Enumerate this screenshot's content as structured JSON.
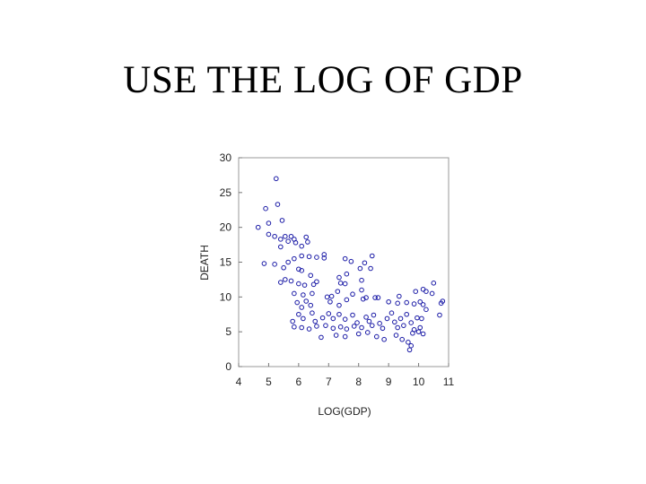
{
  "slide": {
    "title": "USE THE LOG OF GDP"
  },
  "chart_data": {
    "type": "scatter",
    "title": "",
    "xlabel": "LOG(GDP)",
    "ylabel": "DEATH",
    "xlim": [
      4,
      11
    ],
    "ylim": [
      0,
      30
    ],
    "xticks": [
      4,
      5,
      6,
      7,
      8,
      9,
      10,
      11
    ],
    "yticks": [
      0,
      5,
      10,
      15,
      20,
      25,
      30
    ],
    "grid": false,
    "marker": "open-circle",
    "color": "#1a1aa6",
    "points": [
      [
        4.65,
        20.0
      ],
      [
        4.9,
        22.7
      ],
      [
        5.25,
        27.0
      ],
      [
        5.3,
        23.3
      ],
      [
        5.45,
        21.0
      ],
      [
        5.0,
        20.6
      ],
      [
        5.55,
        18.7
      ],
      [
        5.0,
        19.0
      ],
      [
        5.2,
        18.7
      ],
      [
        5.4,
        18.3
      ],
      [
        5.75,
        18.7
      ],
      [
        5.85,
        18.3
      ],
      [
        5.65,
        18.0
      ],
      [
        5.9,
        17.8
      ],
      [
        6.1,
        17.3
      ],
      [
        6.25,
        18.6
      ],
      [
        6.3,
        17.9
      ],
      [
        5.4,
        17.2
      ],
      [
        5.85,
        15.5
      ],
      [
        6.1,
        15.9
      ],
      [
        6.35,
        15.8
      ],
      [
        6.6,
        15.7
      ],
      [
        6.85,
        15.6
      ],
      [
        6.85,
        16.1
      ],
      [
        7.55,
        15.5
      ],
      [
        7.75,
        15.1
      ],
      [
        8.2,
        14.9
      ],
      [
        8.45,
        15.9
      ],
      [
        4.85,
        14.8
      ],
      [
        5.2,
        14.7
      ],
      [
        5.5,
        14.2
      ],
      [
        5.65,
        15.0
      ],
      [
        6.0,
        14.0
      ],
      [
        6.1,
        13.8
      ],
      [
        6.4,
        13.1
      ],
      [
        6.6,
        12.2
      ],
      [
        7.35,
        12.8
      ],
      [
        7.6,
        13.3
      ],
      [
        8.05,
        14.1
      ],
      [
        8.4,
        14.1
      ],
      [
        5.4,
        12.1
      ],
      [
        5.55,
        12.5
      ],
      [
        5.75,
        12.3
      ],
      [
        6.0,
        11.9
      ],
      [
        6.2,
        11.7
      ],
      [
        6.5,
        11.8
      ],
      [
        7.4,
        12.0
      ],
      [
        7.55,
        11.9
      ],
      [
        8.1,
        12.4
      ],
      [
        8.1,
        11.0
      ],
      [
        5.85,
        10.5
      ],
      [
        6.15,
        10.3
      ],
      [
        6.45,
        10.5
      ],
      [
        6.95,
        10.0
      ],
      [
        7.1,
        10.1
      ],
      [
        7.3,
        10.8
      ],
      [
        7.8,
        10.4
      ],
      [
        8.25,
        9.9
      ],
      [
        8.65,
        9.9
      ],
      [
        9.35,
        10.1
      ],
      [
        9.9,
        10.8
      ],
      [
        10.15,
        11.1
      ],
      [
        10.25,
        10.8
      ],
      [
        10.45,
        10.5
      ],
      [
        10.5,
        12.0
      ],
      [
        5.95,
        9.2
      ],
      [
        6.1,
        8.5
      ],
      [
        6.25,
        9.4
      ],
      [
        6.4,
        8.8
      ],
      [
        7.05,
        9.3
      ],
      [
        7.35,
        8.8
      ],
      [
        7.6,
        9.6
      ],
      [
        8.15,
        9.7
      ],
      [
        8.55,
        9.9
      ],
      [
        9.0,
        9.3
      ],
      [
        9.3,
        9.1
      ],
      [
        9.6,
        9.2
      ],
      [
        9.85,
        9.0
      ],
      [
        10.05,
        9.3
      ],
      [
        10.15,
        8.9
      ],
      [
        10.75,
        9.1
      ],
      [
        10.8,
        9.4
      ],
      [
        5.8,
        6.5
      ],
      [
        6.0,
        7.5
      ],
      [
        6.15,
        6.9
      ],
      [
        6.45,
        7.7
      ],
      [
        6.55,
        6.5
      ],
      [
        6.8,
        7.0
      ],
      [
        7.0,
        7.6
      ],
      [
        7.15,
        6.9
      ],
      [
        7.35,
        7.5
      ],
      [
        7.55,
        6.8
      ],
      [
        7.8,
        7.4
      ],
      [
        7.95,
        6.3
      ],
      [
        8.25,
        7.1
      ],
      [
        8.35,
        6.5
      ],
      [
        8.5,
        7.4
      ],
      [
        8.7,
        6.2
      ],
      [
        8.95,
        6.9
      ],
      [
        9.1,
        7.7
      ],
      [
        9.2,
        6.4
      ],
      [
        9.4,
        6.9
      ],
      [
        9.6,
        7.5
      ],
      [
        9.75,
        6.3
      ],
      [
        9.95,
        7.0
      ],
      [
        10.1,
        6.9
      ],
      [
        10.25,
        8.2
      ],
      [
        10.7,
        7.4
      ],
      [
        5.85,
        5.7
      ],
      [
        6.1,
        5.6
      ],
      [
        6.35,
        5.4
      ],
      [
        6.6,
        5.8
      ],
      [
        6.9,
        5.9
      ],
      [
        7.15,
        5.5
      ],
      [
        7.4,
        5.7
      ],
      [
        7.6,
        5.4
      ],
      [
        7.85,
        5.8
      ],
      [
        8.1,
        5.6
      ],
      [
        8.45,
        5.9
      ],
      [
        8.8,
        5.5
      ],
      [
        9.3,
        5.6
      ],
      [
        9.5,
        5.9
      ],
      [
        9.85,
        5.3
      ],
      [
        10.05,
        5.6
      ],
      [
        6.75,
        4.2
      ],
      [
        7.25,
        4.5
      ],
      [
        7.55,
        4.3
      ],
      [
        8.0,
        4.7
      ],
      [
        8.3,
        4.9
      ],
      [
        8.6,
        4.3
      ],
      [
        8.85,
        3.9
      ],
      [
        9.25,
        4.5
      ],
      [
        9.45,
        3.9
      ],
      [
        9.8,
        4.8
      ],
      [
        10.0,
        5.0
      ],
      [
        10.15,
        4.7
      ],
      [
        9.65,
        3.5
      ],
      [
        9.75,
        3.0
      ],
      [
        9.7,
        2.4
      ]
    ]
  }
}
